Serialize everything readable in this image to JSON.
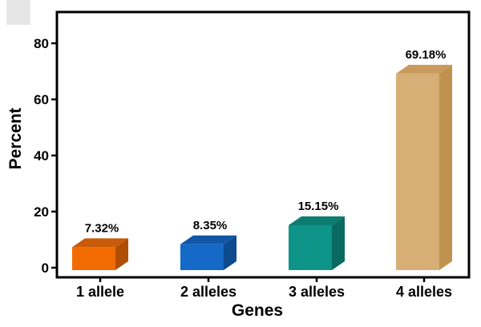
{
  "chart_data": {
    "type": "bar",
    "categories": [
      "1 allele",
      "2 alleles",
      "3 alleles",
      "4 alleles"
    ],
    "values": [
      7.32,
      8.35,
      15.15,
      69.18
    ],
    "data_labels": [
      "7.32%",
      "8.35%",
      "15.15%",
      "69.18%"
    ],
    "title": "",
    "xlabel": "Genes",
    "ylabel": "Percent",
    "ylim": [
      0,
      90
    ],
    "yticks": [
      0,
      20,
      40,
      60,
      80
    ],
    "bar_style": "3d",
    "grid": false,
    "legend": "none",
    "colors": [
      {
        "front": "#F26B00",
        "top": "#C95A0A",
        "side": "#B04E04"
      },
      {
        "front": "#1569C7",
        "top": "#1256A6",
        "side": "#0D4A8E"
      },
      {
        "front": "#0E9488",
        "top": "#0C7B71",
        "side": "#096A61"
      },
      {
        "front": "#D7AE76",
        "top": "#C99A5C",
        "side": "#C0924F"
      }
    ]
  }
}
